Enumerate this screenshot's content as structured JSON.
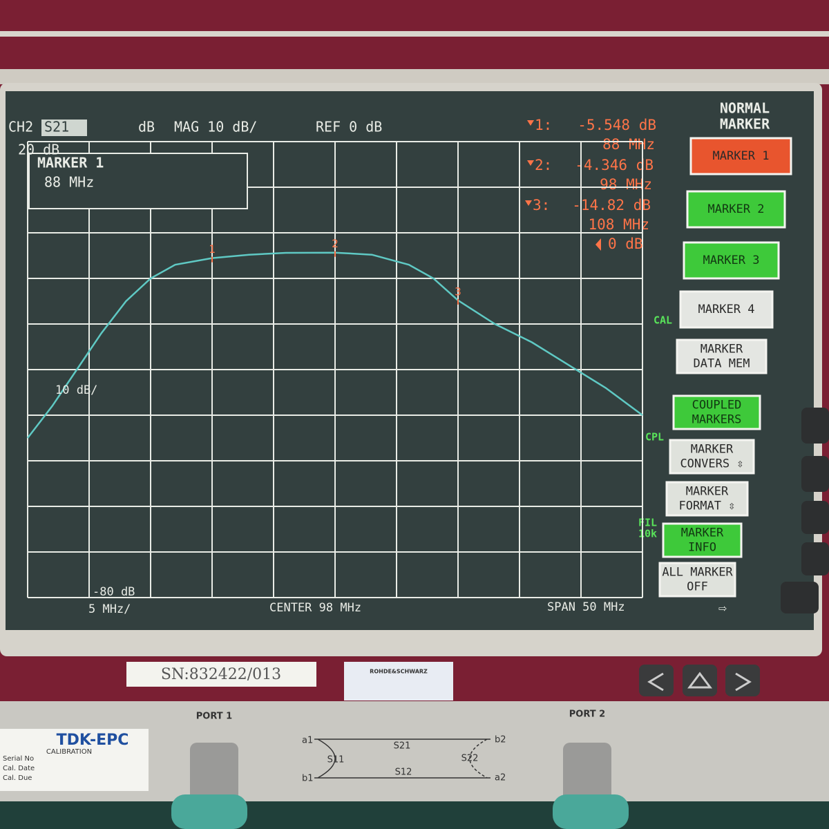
{
  "header": {
    "channel": "CH2",
    "param": "S21",
    "format": "dB",
    "scale": "MAG 10 dB/",
    "ref": "REF 0 dB"
  },
  "marker_box": {
    "title": "MARKER 1",
    "freq": "88 MHz"
  },
  "readouts": [
    {
      "id": "1:",
      "value": "-5.548 dB",
      "freq": "88 MHz"
    },
    {
      "id": "2:",
      "value": "-4.346 dB",
      "freq": "98 MHz"
    },
    {
      "id": "3:",
      "value": "-14.82 dB",
      "freq": "108 MHz"
    }
  ],
  "ref_label": "0 dB",
  "scale_labels": {
    "top": "20 dB",
    "mid": "10 dB/",
    "bottom": "-80 dB"
  },
  "footer": {
    "per_div": "5 MHz/",
    "center": "CENTER 98 MHz",
    "span": "SPAN 50 MHz"
  },
  "side_flags": {
    "cal": "CAL",
    "cpl": "CPL",
    "fil": "FIL",
    "fil_bw": "10k"
  },
  "softkeys": {
    "title": [
      "NORMAL",
      "MARKER"
    ],
    "keys": [
      {
        "lines": [
          "MARKER 1"
        ],
        "color": "#e8552e"
      },
      {
        "lines": [
          "MARKER 2"
        ],
        "color": "#3ec93a"
      },
      {
        "lines": [
          "MARKER 3"
        ],
        "color": "#3ec93a"
      },
      {
        "lines": [
          "MARKER 4"
        ],
        "color": "#e4e6e2"
      },
      {
        "lines": [
          "MARKER",
          "DATA  MEM"
        ],
        "color": "#e4e6e2"
      },
      {
        "lines": [
          "COUPLED",
          "MARKERS"
        ],
        "color": "#3ec93a"
      },
      {
        "lines": [
          "MARKER",
          "CONVERS ⇳"
        ],
        "color": "#dfe2dc"
      },
      {
        "lines": [
          "MARKER",
          "FORMAT ⇳"
        ],
        "color": "#dfe2dc"
      },
      {
        "lines": [
          "MARKER",
          "INFO"
        ],
        "color": "#3ec93a"
      },
      {
        "lines": [
          "ALL MARKER",
          "OFF"
        ],
        "color": "#dfe2dc"
      }
    ]
  },
  "chart_data": {
    "type": "line",
    "x": [
      73,
      75,
      77,
      79,
      81,
      83,
      85,
      88,
      91,
      94,
      98,
      101,
      104,
      106,
      108,
      111,
      114,
      117,
      120,
      123
    ],
    "values": [
      -45,
      -38,
      -30,
      -22,
      -15,
      -10,
      -7,
      -5.548,
      -4.8,
      -4.4,
      -4.346,
      -4.8,
      -7,
      -10,
      -14.82,
      -20,
      -24,
      -29,
      -34,
      -40
    ],
    "color": "#5fc9c4",
    "xlim": [
      73,
      123
    ],
    "ylim": [
      -80,
      20
    ],
    "xticks": [
      73,
      78,
      83,
      88,
      93,
      98,
      103,
      108,
      113,
      118,
      123
    ],
    "yticks": [
      -80,
      -70,
      -60,
      -50,
      -40,
      -30,
      -20,
      -10,
      0,
      10,
      20
    ],
    "grid": true,
    "markers": [
      {
        "x": 88,
        "label": "1"
      },
      {
        "x": 98,
        "label": "2"
      },
      {
        "x": 108,
        "label": "3"
      }
    ]
  },
  "panel": {
    "serial": "SN:832422/013",
    "brand": "ROHDE&SCHWARZ",
    "port1": "PORT 1",
    "port2": "PORT 2",
    "a1": "a1",
    "b1": "b1",
    "a2": "a2",
    "b2": "b2",
    "s21": "S21",
    "s12": "S12",
    "s11": "S11",
    "s22": "S22",
    "tdk": "TDK-EPC",
    "calibration": "CALIBRATION",
    "serial_no": "Serial No",
    "cal_date": "Cal. Date",
    "cal_due": "Cal. Due"
  }
}
